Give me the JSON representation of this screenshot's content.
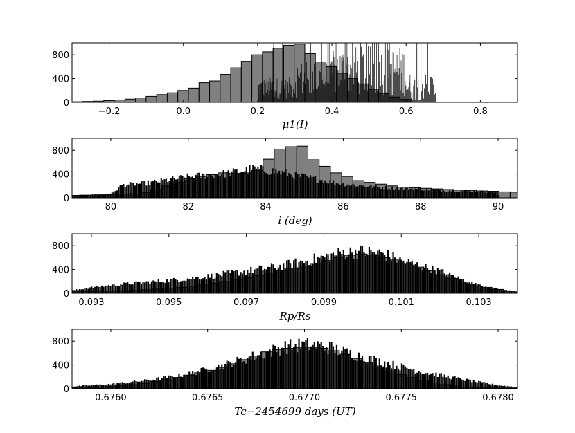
{
  "chart_data": [
    {
      "type": "bar",
      "xlabel": "μ1(I)",
      "xlim": [
        -0.3,
        0.9
      ],
      "ylim": [
        0,
        1000
      ],
      "xticks": [
        -0.2,
        0.0,
        0.2,
        0.4,
        0.6,
        0.8
      ],
      "xtick_labels": [
        "−0.2",
        "0.0",
        "0.2",
        "0.4",
        "0.6",
        "0.8"
      ],
      "yticks": [
        0,
        400,
        800
      ],
      "ytick_labels": [
        "0",
        "400",
        "800"
      ],
      "coarse_hist": {
        "x_start": -0.3,
        "bin_width": 0.0285,
        "values": [
          10,
          15,
          20,
          30,
          40,
          55,
          75,
          100,
          130,
          160,
          200,
          240,
          330,
          360,
          470,
          580,
          690,
          800,
          850,
          910,
          960,
          980,
          820,
          680,
          600,
          490,
          400,
          310,
          220,
          150,
          90,
          50
        ]
      },
      "fine_hist": {
        "x_start": 0.2,
        "x_end": 0.68,
        "segments": [
          [
            0.2,
            0.3,
            60,
            420
          ],
          [
            0.3,
            0.4,
            80,
            700
          ],
          [
            0.4,
            0.5,
            100,
            950
          ],
          [
            0.5,
            0.6,
            100,
            950
          ],
          [
            0.6,
            0.68,
            30,
            500
          ]
        ]
      }
    },
    {
      "type": "bar",
      "xlabel": "i (deg)",
      "xlim": [
        79.0,
        90.5
      ],
      "ylim": [
        0,
        1000
      ],
      "xticks": [
        80,
        82,
        84,
        86,
        88,
        90
      ],
      "xtick_labels": [
        "80",
        "82",
        "84",
        "86",
        "88",
        "90"
      ],
      "yticks": [
        0,
        400,
        800
      ],
      "ytick_labels": [
        "0",
        "400",
        "800"
      ],
      "coarse_hist": {
        "x_start": 79.0,
        "bin_width": 0.29,
        "values": [
          40,
          45,
          50,
          55,
          60,
          70,
          90,
          140,
          200,
          260,
          320,
          360,
          390,
          420,
          410,
          420,
          460,
          650,
          820,
          860,
          870,
          640,
          530,
          420,
          360,
          290,
          260,
          230,
          200,
          180,
          170,
          160,
          150,
          140,
          130,
          125,
          115,
          110,
          100,
          95
        ]
      },
      "fine_hist": {
        "x_start": 79.0,
        "x_end": 90.0,
        "envelope": [
          [
            79.0,
            40
          ],
          [
            80.0,
            60
          ],
          [
            80.3,
            220
          ],
          [
            81.0,
            260
          ],
          [
            82.0,
            360
          ],
          [
            83.0,
            420
          ],
          [
            83.7,
            500
          ],
          [
            84.2,
            460
          ],
          [
            85.0,
            360
          ],
          [
            86.0,
            240
          ],
          [
            87.0,
            180
          ],
          [
            88.0,
            150
          ],
          [
            89.0,
            120
          ],
          [
            90.0,
            100
          ]
        ]
      }
    },
    {
      "type": "bar",
      "xlabel": "Rp/Rs",
      "xlim": [
        0.0925,
        0.104
      ],
      "ylim": [
        0,
        1000
      ],
      "xticks": [
        0.093,
        0.095,
        0.097,
        0.099,
        0.101,
        0.103
      ],
      "xtick_labels": [
        "0.093",
        "0.095",
        "0.097",
        "0.099",
        "0.101",
        "0.103"
      ],
      "yticks": [
        0,
        400,
        800
      ],
      "ytick_labels": [
        "0",
        "400",
        "800"
      ],
      "coarse_hist": {
        "x_start": 0.0925,
        "bin_width": 0.000293,
        "values": [
          25,
          30,
          35,
          40,
          45,
          50,
          60,
          70,
          85,
          100,
          120,
          140,
          170,
          200,
          230,
          260,
          300,
          340,
          380,
          420,
          460,
          500,
          550,
          600,
          640,
          660,
          640,
          600,
          560,
          500,
          440,
          380,
          310,
          250,
          190,
          140,
          100,
          65,
          40,
          25
        ]
      },
      "fine_hist": {
        "x_start": 0.0925,
        "x_end": 0.104,
        "envelope": [
          [
            0.0925,
            50
          ],
          [
            0.093,
            100
          ],
          [
            0.0935,
            140
          ],
          [
            0.094,
            170
          ],
          [
            0.095,
            220
          ],
          [
            0.096,
            290
          ],
          [
            0.097,
            380
          ],
          [
            0.098,
            480
          ],
          [
            0.099,
            620
          ],
          [
            0.0995,
            700
          ],
          [
            0.1,
            720
          ],
          [
            0.1005,
            690
          ],
          [
            0.101,
            560
          ],
          [
            0.102,
            380
          ],
          [
            0.1025,
            250
          ],
          [
            0.103,
            140
          ],
          [
            0.1035,
            70
          ],
          [
            0.104,
            30
          ]
        ]
      }
    },
    {
      "type": "bar",
      "xlabel": "Tc−2454699 days (UT)",
      "xlim": [
        0.6758,
        0.6781
      ],
      "ylim": [
        0,
        1000
      ],
      "xticks": [
        0.676,
        0.6765,
        0.677,
        0.6775,
        0.678
      ],
      "xtick_labels": [
        "0.6760",
        "0.6765",
        "0.6770",
        "0.6775",
        "0.6780"
      ],
      "yticks": [
        0,
        400,
        800
      ],
      "ytick_labels": [
        "0",
        "400",
        "800"
      ],
      "coarse_hist": {
        "x_start": 0.6758,
        "bin_width": 5.75e-05,
        "values": [
          20,
          25,
          30,
          40,
          50,
          70,
          90,
          120,
          150,
          190,
          230,
          270,
          310,
          360,
          420,
          490,
          550,
          620,
          660,
          680,
          690,
          690,
          680,
          640,
          580,
          510,
          440,
          370,
          300,
          240,
          190,
          140,
          100,
          70,
          45,
          30,
          20,
          15,
          10,
          8
        ]
      },
      "fine_hist": {
        "x_start": 0.6758,
        "x_end": 0.6781,
        "envelope": [
          [
            0.6758,
            40
          ],
          [
            0.676,
            80
          ],
          [
            0.6762,
            150
          ],
          [
            0.6764,
            250
          ],
          [
            0.6766,
            420
          ],
          [
            0.6768,
            620
          ],
          [
            0.6769,
            720
          ],
          [
            0.677,
            760
          ],
          [
            0.6771,
            740
          ],
          [
            0.6772,
            640
          ],
          [
            0.6774,
            460
          ],
          [
            0.6776,
            300
          ],
          [
            0.6778,
            170
          ],
          [
            0.678,
            60
          ],
          [
            0.6781,
            30
          ]
        ]
      }
    }
  ]
}
